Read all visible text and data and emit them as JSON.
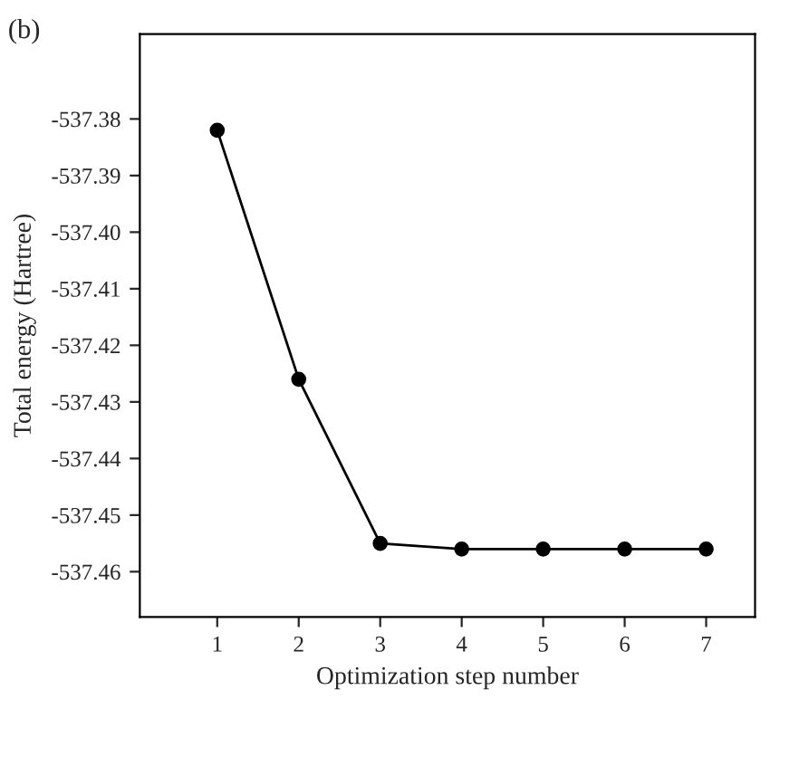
{
  "chart_data": {
    "type": "line",
    "xlabel": "Optimization step number",
    "ylabel": "Total energy (Hartree)",
    "annotations": [
      "(b)"
    ],
    "x": [
      1,
      2,
      3,
      4,
      5,
      6,
      7
    ],
    "series": [
      {
        "color": "#000000",
        "values": [
          -537.382,
          -537.426,
          -537.455,
          -537.456,
          -537.456,
          -537.456,
          -537.456
        ]
      }
    ],
    "xlim": [
      0.05,
      7.6
    ],
    "xticks": [
      1,
      2,
      3,
      4,
      5,
      6,
      7
    ],
    "ylim": [
      -537.468,
      -537.365
    ],
    "yticks": [
      {
        "value": -537.38,
        "label": "-537.38"
      },
      {
        "value": -537.39,
        "label": "-537.39"
      },
      {
        "value": -537.4,
        "label": "-537.40"
      },
      {
        "value": -537.41,
        "label": "-537.41"
      },
      {
        "value": -537.42,
        "label": "-537.42"
      },
      {
        "value": -537.43,
        "label": "-537.43"
      },
      {
        "value": -537.44,
        "label": "-537.44"
      },
      {
        "value": -537.45,
        "label": "-537.45"
      },
      {
        "value": -537.46,
        "label": "-537.46"
      }
    ],
    "marker": "circle",
    "line_style": "solid",
    "grid": false,
    "legend": false
  }
}
